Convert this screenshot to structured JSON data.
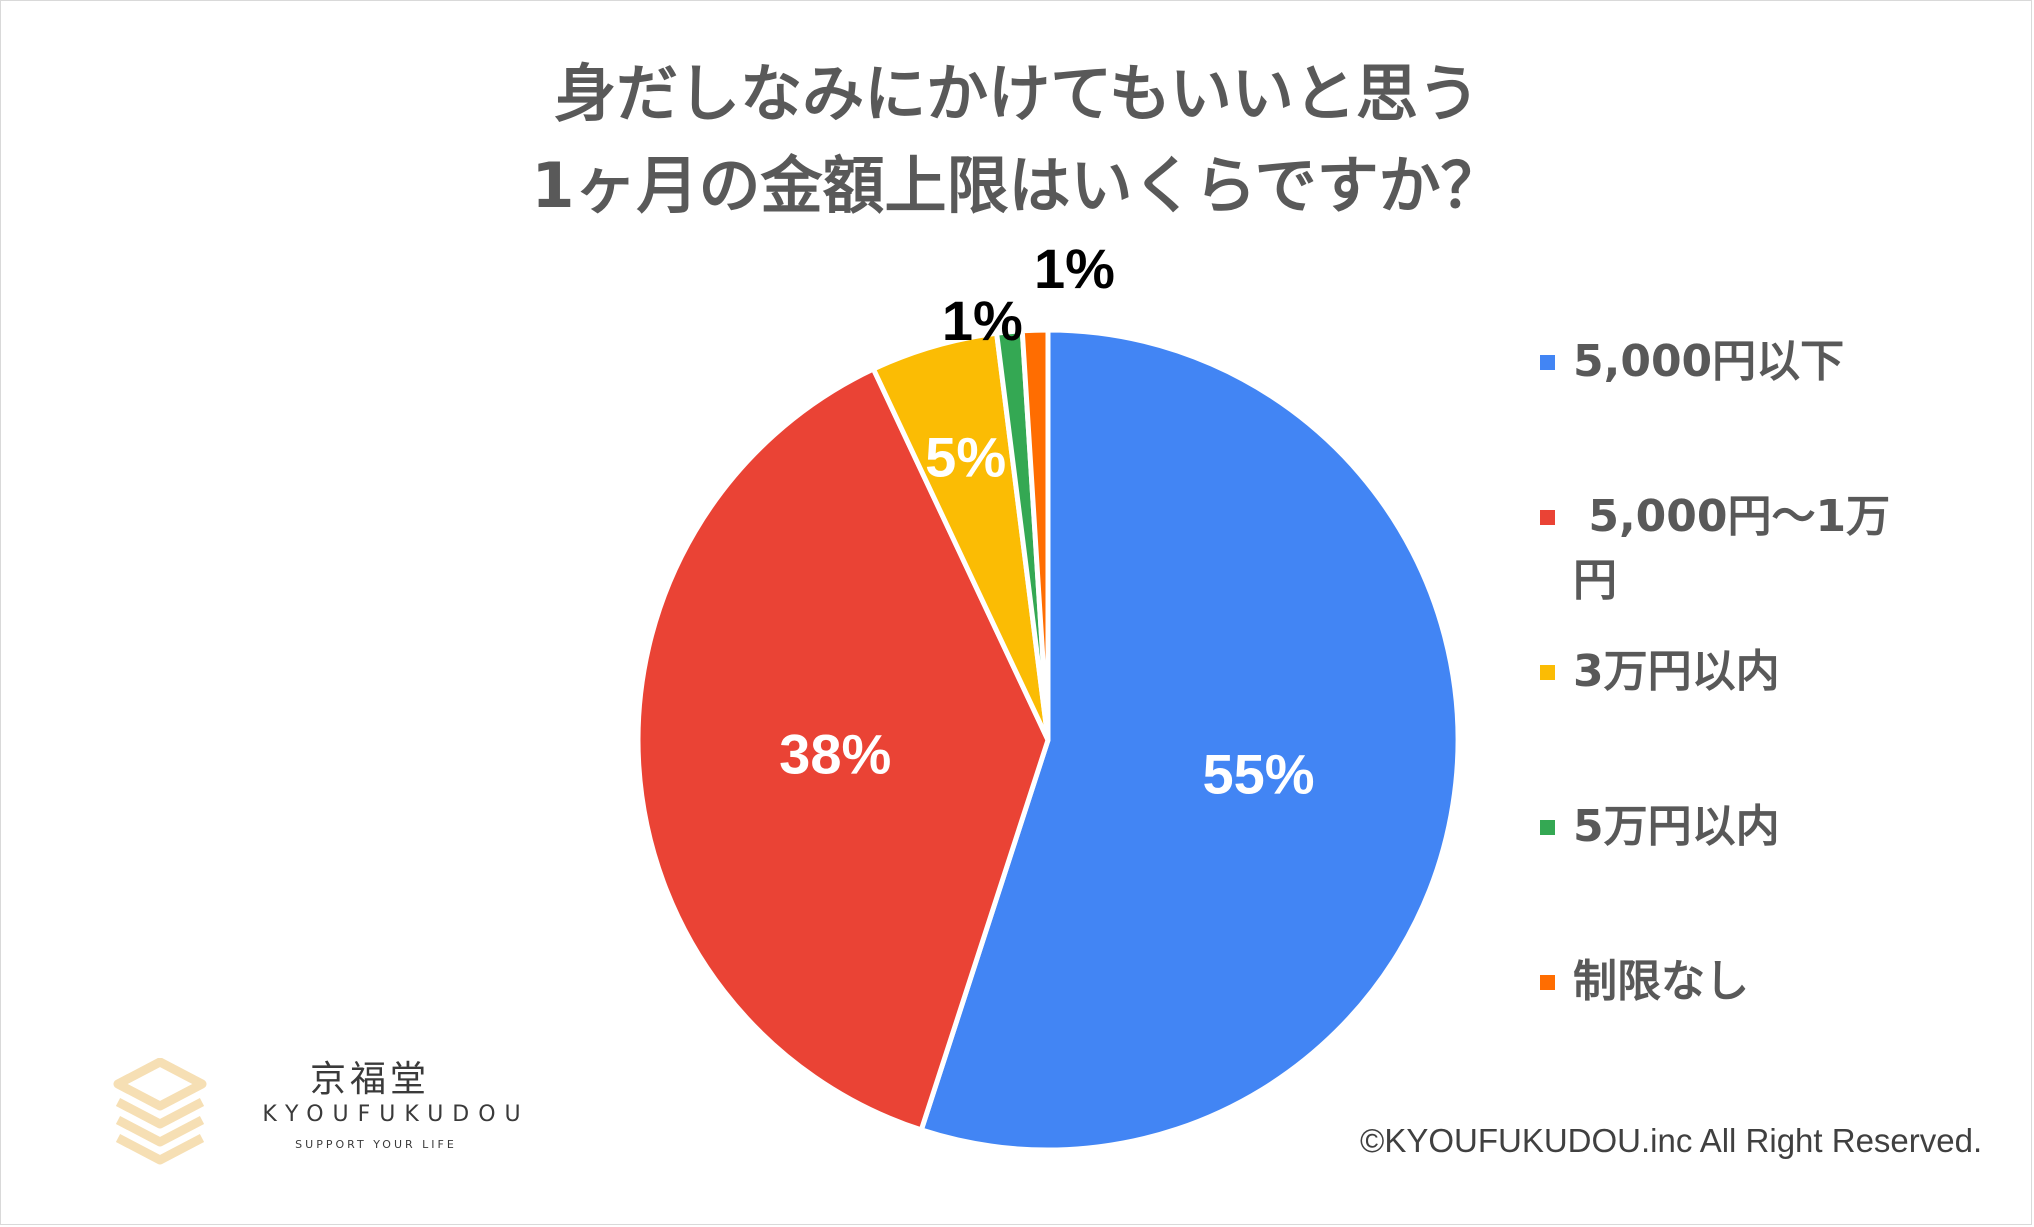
{
  "title": {
    "line1": "身だしなみにかけてもいいと思う",
    "line2": "1ヶ月の金額上限はいくらですか？"
  },
  "chart_data": {
    "type": "pie",
    "title": "身だしなみにかけてもいいと思う 1ヶ月の金額上限はいくらですか？",
    "categories": [
      "5,000円以下",
      " 5,000円〜1万円",
      "3万円以内",
      "5万円以内",
      "制限なし"
    ],
    "values": [
      55,
      38,
      5,
      1,
      1
    ],
    "labels": [
      "55%",
      "38%",
      "5%",
      "1%",
      "1%"
    ],
    "colors": [
      "#4285f4",
      "#ea4335",
      "#fbbc04",
      "#34a853",
      "#ff6d01"
    ],
    "label_colors": [
      "#ffffff",
      "#ffffff",
      "#ffffff",
      "#000000",
      "#000000"
    ],
    "start": "12 o'clock",
    "direction": "clockwise",
    "legend_position": "right"
  },
  "legend": {
    "items": [
      {
        "label": "5,000円以下",
        "color": "#4285f4"
      },
      {
        "label": " 5,000円〜1万\n円",
        "color": "#ea4335"
      },
      {
        "label": "3万円以内",
        "color": "#fbbc04"
      },
      {
        "label": "5万円以内",
        "color": "#34a853"
      },
      {
        "label": "制限なし",
        "color": "#ff6d01"
      }
    ]
  },
  "logo": {
    "name": "京福堂",
    "english": "KYOUFUKUDOU",
    "tagline": "SUPPORT YOUR LIFE"
  },
  "copyright": "©KYOUFUKUDOU.inc All Right Reserved."
}
